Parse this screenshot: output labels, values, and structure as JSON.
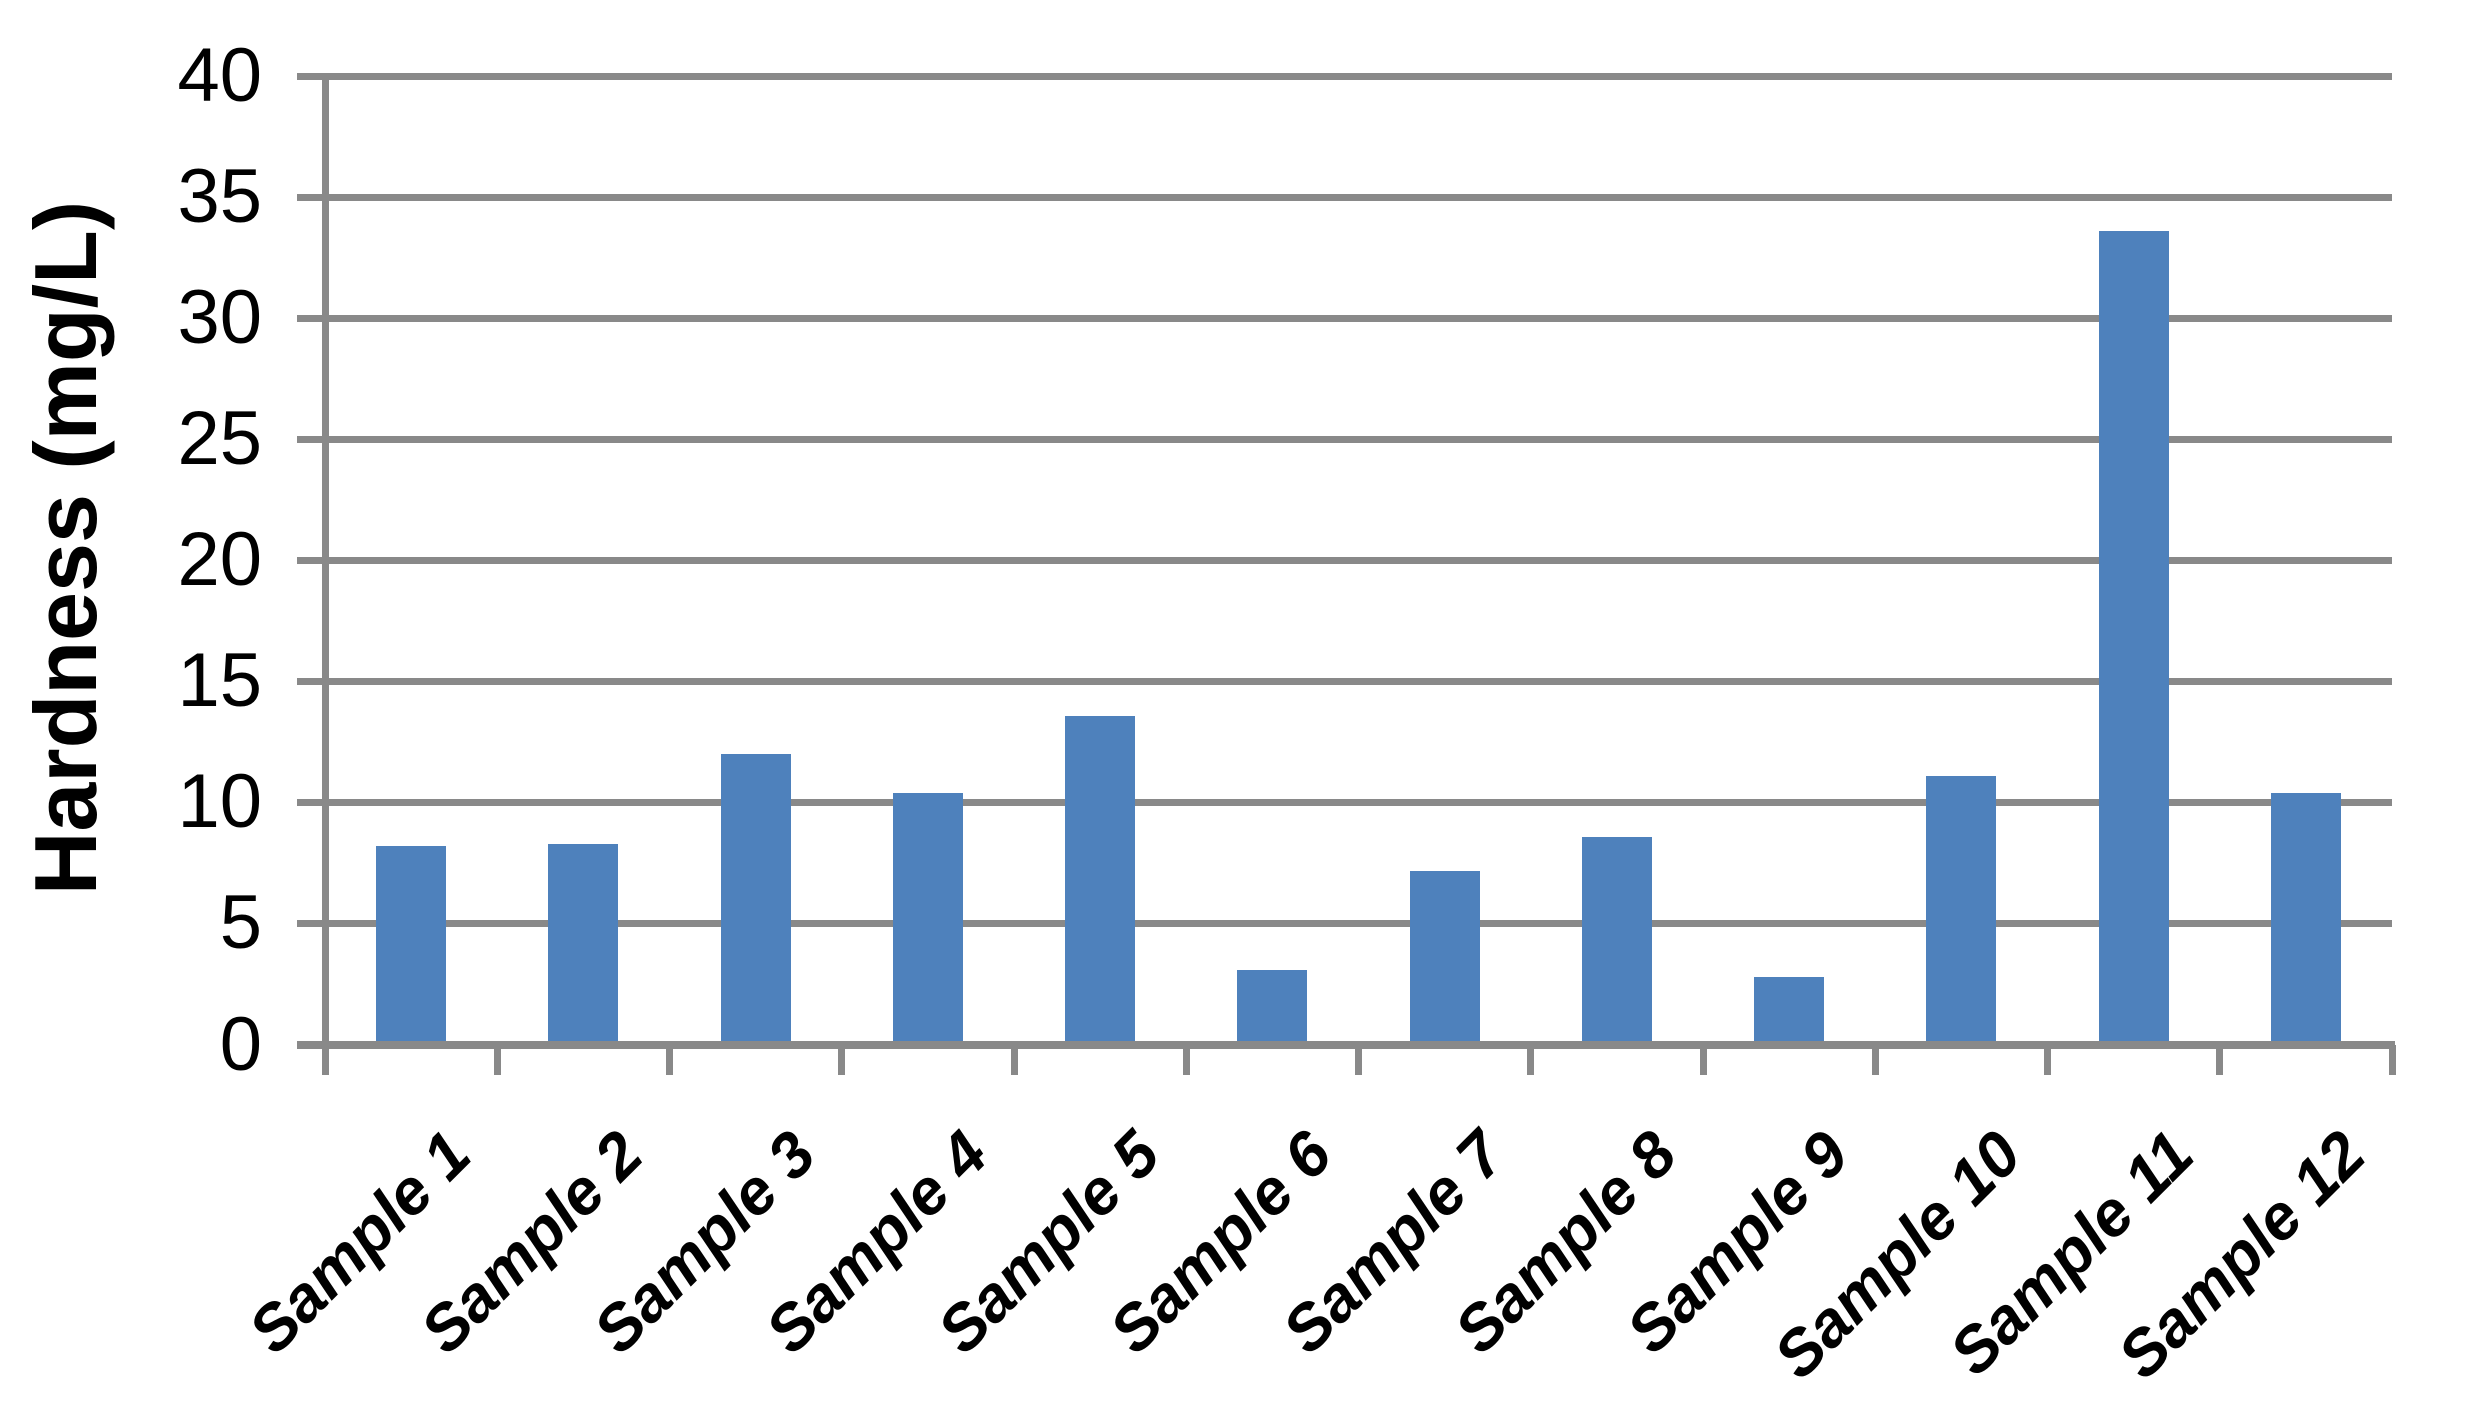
{
  "chart_data": {
    "type": "bar",
    "title": "",
    "xlabel": "",
    "ylabel": "Hardness (mg/L)",
    "categories": [
      "Sample 1",
      "Sample 2",
      "Sample 3",
      "Sample 4",
      "Sample 5",
      "Sample 6",
      "Sample 7",
      "Sample 8",
      "Sample 9",
      "Sample 10",
      "Sample 11",
      "Sample 12"
    ],
    "values": [
      8.2,
      8.3,
      12.0,
      10.4,
      13.6,
      3.1,
      7.2,
      8.6,
      2.8,
      11.1,
      33.6,
      10.4
    ],
    "ylim": [
      0,
      40
    ],
    "yticks": [
      0,
      5,
      10,
      15,
      20,
      25,
      30,
      35,
      40
    ],
    "grid": "horizontal",
    "legend": "none",
    "bar_color": "#4E81BC",
    "axis_color": "#898989",
    "text_color": "#000000",
    "background": "#FFFFFF"
  }
}
